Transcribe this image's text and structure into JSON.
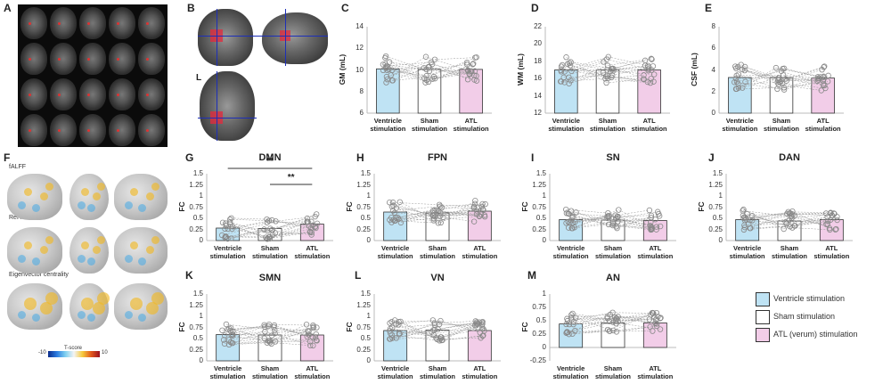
{
  "panel_letters": [
    "A",
    "B",
    "C",
    "D",
    "E",
    "F",
    "G",
    "H",
    "I",
    "J",
    "K",
    "L",
    "M"
  ],
  "panel_b": {
    "side_label": "L"
  },
  "panel_f": {
    "maps": [
      "fALFF",
      "ReHo",
      "Eigenvector centrality"
    ],
    "colorbar_label": "T-score",
    "colorbar_ticks": [
      "-10",
      "10"
    ]
  },
  "conditions": [
    {
      "line1": "Ventricle",
      "line2": "stimulation"
    },
    {
      "line1": "Sham",
      "line2": "stimulation"
    },
    {
      "line1": "ATL",
      "line2": "stimulation"
    }
  ],
  "colors": {
    "ventricle": "#bfe3f4",
    "sham": "#ffffff",
    "atl": "#f2cde8",
    "points": "#888888"
  },
  "legend": [
    {
      "label": "Ventricle stimulation",
      "color": "#bfe3f4"
    },
    {
      "label": "Sham stimulation",
      "color": "#ffffff"
    },
    {
      "label": "ATL (verum) stimulation",
      "color": "#f2cde8"
    }
  ],
  "chart_data": [
    {
      "id": "C",
      "type": "bar",
      "title": "",
      "ylabel": "GM (mL)",
      "ylim": [
        6,
        14
      ],
      "yticks": [
        6,
        8,
        10,
        12,
        14
      ],
      "categories": [
        "Ventricle stimulation",
        "Sham stimulation",
        "ATL stimulation"
      ],
      "values": [
        10.1,
        10.05,
        10.05
      ]
    },
    {
      "id": "D",
      "type": "bar",
      "title": "",
      "ylabel": "WM (mL)",
      "ylim": [
        12,
        22
      ],
      "yticks": [
        12,
        14,
        16,
        18,
        20,
        22
      ],
      "categories": [
        "Ventricle stimulation",
        "Sham stimulation",
        "ATL stimulation"
      ],
      "values": [
        17.0,
        17.0,
        17.0
      ]
    },
    {
      "id": "E",
      "type": "bar",
      "title": "",
      "ylabel": "CSF (mL)",
      "ylim": [
        0,
        8
      ],
      "yticks": [
        0,
        2,
        4,
        6,
        8
      ],
      "categories": [
        "Ventricle stimulation",
        "Sham stimulation",
        "ATL stimulation"
      ],
      "values": [
        3.3,
        3.3,
        3.25
      ]
    },
    {
      "id": "G",
      "type": "bar",
      "title": "DMN",
      "ylabel": "FC",
      "ylim": [
        0,
        1.5
      ],
      "yticks": [
        0,
        0.25,
        0.5,
        0.75,
        1,
        1.25,
        1.5
      ],
      "categories": [
        "Ventricle stimulation",
        "Sham stimulation",
        "ATL stimulation"
      ],
      "values": [
        0.28,
        0.27,
        0.37
      ],
      "significance": [
        {
          "from": 0,
          "to": 2,
          "label": "**"
        },
        {
          "from": 1,
          "to": 2,
          "label": "**"
        }
      ]
    },
    {
      "id": "H",
      "type": "bar",
      "title": "FPN",
      "ylabel": "FC",
      "ylim": [
        0,
        1.5
      ],
      "yticks": [
        0,
        0.25,
        0.5,
        0.75,
        1,
        1.25,
        1.5
      ],
      "categories": [
        "Ventricle stimulation",
        "Sham stimulation",
        "ATL stimulation"
      ],
      "values": [
        0.64,
        0.62,
        0.66
      ]
    },
    {
      "id": "I",
      "type": "bar",
      "title": "SN",
      "ylabel": "FC",
      "ylim": [
        0,
        1.5
      ],
      "yticks": [
        0,
        0.25,
        0.5,
        0.75,
        1,
        1.25,
        1.5
      ],
      "categories": [
        "Ventricle stimulation",
        "Sham stimulation",
        "ATL stimulation"
      ],
      "values": [
        0.47,
        0.46,
        0.45
      ]
    },
    {
      "id": "J",
      "type": "bar",
      "title": "DAN",
      "ylabel": "FC",
      "ylim": [
        0,
        1.5
      ],
      "yticks": [
        0,
        0.25,
        0.5,
        0.75,
        1,
        1.25,
        1.5
      ],
      "categories": [
        "Ventricle stimulation",
        "Sham stimulation",
        "ATL stimulation"
      ],
      "values": [
        0.47,
        0.44,
        0.47
      ]
    },
    {
      "id": "K",
      "type": "bar",
      "title": "SMN",
      "ylabel": "FC",
      "ylim": [
        0,
        1.5
      ],
      "yticks": [
        0,
        0.25,
        0.5,
        0.75,
        1,
        1.25,
        1.5
      ],
      "categories": [
        "Ventricle stimulation",
        "Sham stimulation",
        "ATL stimulation"
      ],
      "values": [
        0.59,
        0.58,
        0.58
      ]
    },
    {
      "id": "L",
      "type": "bar",
      "title": "VN",
      "ylabel": "FC",
      "ylim": [
        0,
        1.5
      ],
      "yticks": [
        0,
        0.25,
        0.5,
        0.75,
        1,
        1.25,
        1.5
      ],
      "categories": [
        "Ventricle stimulation",
        "Sham stimulation",
        "ATL stimulation"
      ],
      "values": [
        0.68,
        0.69,
        0.68
      ]
    },
    {
      "id": "M",
      "type": "bar",
      "title": "AN",
      "ylabel": "FC",
      "ylim": [
        -0.25,
        1
      ],
      "yticks": [
        -0.25,
        0,
        0.25,
        0.5,
        0.75,
        1
      ],
      "categories": [
        "Ventricle stimulation",
        "Sham stimulation",
        "ATL stimulation"
      ],
      "values": [
        0.44,
        0.46,
        0.46
      ]
    }
  ]
}
